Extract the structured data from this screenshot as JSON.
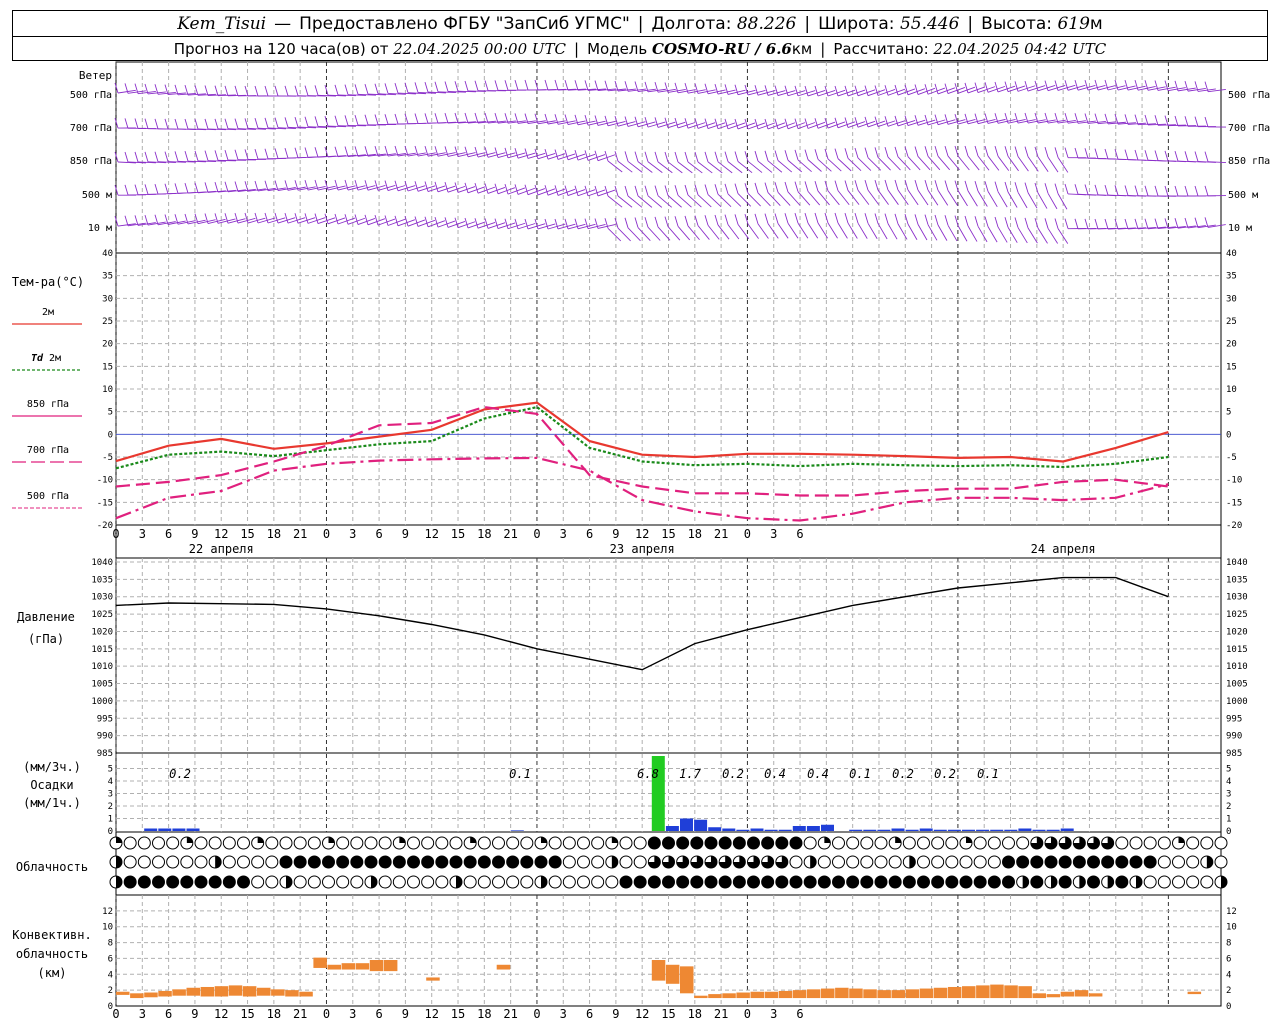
{
  "header": {
    "station": "Kem_Tisui",
    "provider": "Предоставлено ФГБУ \"ЗапСиб УГМС\"",
    "lon_label": "Долгота:",
    "lon": "88.226",
    "lat_label": "Широта:",
    "lat": "55.446",
    "alt_label": "Высота:",
    "alt": "619",
    "alt_unit": "м",
    "forecast_prefix": "Прогноз на 120 часа(ов) от",
    "forecast_start": "22.04.2025 00:00 UTC",
    "model_label": "Модель",
    "model": "COSMO-RU / 6.6",
    "model_unit": "км",
    "calc_label": "Рассчитано:",
    "calc_time": "22.04.2025 04:42 UTC"
  },
  "wind_panel": {
    "title": "Ветер",
    "levels": [
      "500 гПа",
      "700 гПа",
      "850 гПа",
      "500 м",
      "10  м"
    ],
    "color": "#8b2fc9"
  },
  "time_axis": {
    "hour_labels": [
      "0",
      "3",
      "6",
      "9",
      "12",
      "15",
      "18",
      "21",
      "0",
      "3",
      "6",
      "9",
      "12",
      "15",
      "18",
      "21",
      "0",
      "3",
      "6",
      "9",
      "12",
      "15",
      "18",
      "21",
      "0",
      "3",
      "6"
    ],
    "day_labels": [
      "22 апреля",
      "23 апреля",
      "24 апреля"
    ]
  },
  "legend": {
    "temp_title": "Тем-ра(°C)",
    "t2m": "2м",
    "td_prefix": "Td",
    "td": "2м",
    "t850": "850 гПа",
    "t700": "700 гПа",
    "t500": "500 гПа"
  },
  "pressure_panel": {
    "title": "Давление",
    "unit": "(гПа)"
  },
  "precip_panel": {
    "unit3h": "(мм/3ч.)",
    "title": "Осадки",
    "unit1h": "(мм/1ч.)",
    "totals": [
      {
        "h": 15,
        "label": "0.2"
      },
      {
        "h": 9,
        "label": "0.1"
      },
      {
        "h": 30,
        "label": "6.8"
      },
      {
        "h": 33,
        "label": "1.7"
      },
      {
        "h": 36,
        "label": "0.2"
      },
      {
        "h": 39,
        "label": "0.4"
      },
      {
        "h": 42,
        "label": "0.4"
      },
      {
        "h": 45,
        "label": "0.1"
      },
      {
        "h": 48,
        "label": "0.2"
      },
      {
        "h": 51,
        "label": "0.2"
      },
      {
        "h": 54,
        "label": "0.1"
      }
    ]
  },
  "cloud_panel": {
    "title": "Облачность"
  },
  "conv_panel": {
    "title1": "Конвективн.",
    "title2": "облачность",
    "unit": "(км)"
  },
  "chart_data": [
    {
      "type": "line",
      "name": "temperature",
      "x_hours": [
        0,
        6,
        12,
        18,
        24,
        30,
        36,
        42,
        48,
        54,
        60,
        66,
        72,
        78,
        84,
        90,
        96,
        102,
        108,
        114,
        120
      ],
      "ylim": [
        -20,
        40
      ],
      "series": [
        {
          "name": "2м",
          "color": "#e8382f",
          "values": [
            -5.9,
            -2.5,
            -1.0,
            -3.2,
            -2.0,
            -0.5,
            1.0,
            5.5,
            7.0,
            -1.5,
            -4.5,
            -5.0,
            -4.3,
            -4.3,
            -4.5,
            -4.8,
            -5.2,
            -5.0,
            -6.0,
            -3.0,
            0.5
          ]
        },
        {
          "name": "Td 2м",
          "color": "#1a8a1a",
          "values": [
            -7.5,
            -4.5,
            -3.8,
            -4.8,
            -3.5,
            -2.2,
            -1.5,
            3.5,
            6.0,
            -3.0,
            -6.0,
            -6.8,
            -6.5,
            -7.0,
            -6.5,
            -6.8,
            -7.0,
            -6.8,
            -7.2,
            -6.5,
            -5.0
          ]
        },
        {
          "name": "850 гПа",
          "color": "#e0207e",
          "values": [
            -11.5,
            -10.5,
            -9.0,
            -6.0,
            -2.5,
            2.0,
            2.5,
            6.0,
            4.5,
            -9.0,
            -11.5,
            -13.0,
            -13.0,
            -13.5,
            -13.5,
            -12.5,
            -12.0,
            -12.0,
            -10.5,
            -10.0,
            -11.5
          ]
        },
        {
          "name": "700 гПа",
          "color": "#e0207e",
          "values": [
            -18.5,
            -14.0,
            -12.5,
            -8.0,
            -6.5,
            -5.8,
            -5.5,
            -5.3,
            -5.2,
            -8.0,
            -14.5,
            -17.0,
            -18.5,
            -19.0,
            -17.5,
            -15.0,
            -14.0,
            -14.0,
            -14.5,
            -14.0,
            -11.0
          ]
        },
        {
          "name": "500 гПа",
          "color": "#e0207e",
          "values": []
        }
      ]
    },
    {
      "type": "line",
      "name": "pressure",
      "x_hours": [
        0,
        6,
        12,
        18,
        24,
        30,
        36,
        42,
        48,
        54,
        60,
        66,
        72,
        78,
        84,
        90,
        96,
        102,
        108,
        114,
        120
      ],
      "ylim": [
        985,
        1040
      ],
      "series": [
        {
          "name": "Давление",
          "color": "#000000",
          "values": [
            1027.5,
            1028.2,
            1028.0,
            1027.8,
            1026.5,
            1024.5,
            1022.0,
            1019.0,
            1015.0,
            1012.0,
            1009.0,
            1016.5,
            1020.5,
            1024.0,
            1027.5,
            1030.0,
            1032.5,
            1034.0,
            1035.5,
            1035.5,
            1030.0
          ]
        }
      ]
    },
    {
      "type": "bar",
      "name": "precipitation_1h",
      "ylim": [
        0,
        6
      ],
      "bars": [
        {
          "h": 3,
          "v": 0.2
        },
        {
          "h": 4,
          "v": 0.2
        },
        {
          "h": 5,
          "v": 0.2
        },
        {
          "h": 6,
          "v": 0.2
        },
        {
          "h": 29,
          "v": 0.05
        },
        {
          "h": 39,
          "v": 6.0,
          "color": "#22cc22"
        },
        {
          "h": 40,
          "v": 0.4
        },
        {
          "h": 41,
          "v": 1.0
        },
        {
          "h": 42,
          "v": 0.9
        },
        {
          "h": 43,
          "v": 0.3
        },
        {
          "h": 44,
          "v": 0.2
        },
        {
          "h": 45,
          "v": 0.1
        },
        {
          "h": 46,
          "v": 0.2
        },
        {
          "h": 47,
          "v": 0.1
        },
        {
          "h": 48,
          "v": 0.1
        },
        {
          "h": 49,
          "v": 0.4
        },
        {
          "h": 50,
          "v": 0.4
        },
        {
          "h": 51,
          "v": 0.5
        },
        {
          "h": 53,
          "v": 0.1
        },
        {
          "h": 54,
          "v": 0.1
        },
        {
          "h": 55,
          "v": 0.1
        },
        {
          "h": 56,
          "v": 0.2
        },
        {
          "h": 57,
          "v": 0.1
        },
        {
          "h": 58,
          "v": 0.2
        },
        {
          "h": 59,
          "v": 0.1
        },
        {
          "h": 60,
          "v": 0.1
        },
        {
          "h": 61,
          "v": 0.1
        },
        {
          "h": 62,
          "v": 0.1
        },
        {
          "h": 63,
          "v": 0.1
        },
        {
          "h": 64,
          "v": 0.1
        },
        {
          "h": 65,
          "v": 0.2
        },
        {
          "h": 66,
          "v": 0.1
        },
        {
          "h": 67,
          "v": 0.1
        },
        {
          "h": 68,
          "v": 0.2
        }
      ],
      "color": "#1f3fd8"
    },
    {
      "type": "bar",
      "name": "convective_cloud",
      "ylim": [
        0,
        14
      ],
      "color": "#ee8833",
      "bars": [
        {
          "h": 0,
          "lo": 1.4,
          "hi": 1.8
        },
        {
          "h": 1,
          "lo": 1.0,
          "hi": 1.6
        },
        {
          "h": 2,
          "lo": 1.1,
          "hi": 1.7
        },
        {
          "h": 3,
          "lo": 1.2,
          "hi": 1.9
        },
        {
          "h": 4,
          "lo": 1.3,
          "hi": 2.1
        },
        {
          "h": 5,
          "lo": 1.3,
          "hi": 2.3
        },
        {
          "h": 6,
          "lo": 1.2,
          "hi": 2.4
        },
        {
          "h": 7,
          "lo": 1.2,
          "hi": 2.5
        },
        {
          "h": 8,
          "lo": 1.3,
          "hi": 2.6
        },
        {
          "h": 9,
          "lo": 1.2,
          "hi": 2.5
        },
        {
          "h": 10,
          "lo": 1.3,
          "hi": 2.3
        },
        {
          "h": 11,
          "lo": 1.3,
          "hi": 2.1
        },
        {
          "h": 12,
          "lo": 1.2,
          "hi": 2.0
        },
        {
          "h": 13,
          "lo": 1.2,
          "hi": 1.8
        },
        {
          "h": 14,
          "lo": 4.8,
          "hi": 6.1
        },
        {
          "h": 15,
          "lo": 4.6,
          "hi": 5.2
        },
        {
          "h": 16,
          "lo": 4.6,
          "hi": 5.4
        },
        {
          "h": 17,
          "lo": 4.6,
          "hi": 5.4
        },
        {
          "h": 18,
          "lo": 4.4,
          "hi": 5.8
        },
        {
          "h": 19,
          "lo": 4.4,
          "hi": 5.8
        },
        {
          "h": 22,
          "lo": 3.2,
          "hi": 3.6
        },
        {
          "h": 27,
          "lo": 4.6,
          "hi": 5.2
        },
        {
          "h": 38,
          "lo": 3.2,
          "hi": 5.8
        },
        {
          "h": 39,
          "lo": 2.8,
          "hi": 5.2
        },
        {
          "h": 40,
          "lo": 1.6,
          "hi": 5.0
        },
        {
          "h": 41,
          "lo": 1.0,
          "hi": 1.3
        },
        {
          "h": 42,
          "lo": 1.0,
          "hi": 1.5
        },
        {
          "h": 43,
          "lo": 1.0,
          "hi": 1.6
        },
        {
          "h": 44,
          "lo": 1.0,
          "hi": 1.7
        },
        {
          "h": 45,
          "lo": 1.0,
          "hi": 1.8
        },
        {
          "h": 46,
          "lo": 1.0,
          "hi": 1.8
        },
        {
          "h": 47,
          "lo": 1.0,
          "hi": 1.9
        },
        {
          "h": 48,
          "lo": 1.0,
          "hi": 2.0
        },
        {
          "h": 49,
          "lo": 1.0,
          "hi": 2.1
        },
        {
          "h": 50,
          "lo": 1.0,
          "hi": 2.2
        },
        {
          "h": 51,
          "lo": 1.0,
          "hi": 2.3
        },
        {
          "h": 52,
          "lo": 1.0,
          "hi": 2.2
        },
        {
          "h": 53,
          "lo": 1.0,
          "hi": 2.1
        },
        {
          "h": 54,
          "lo": 1.0,
          "hi": 2.0
        },
        {
          "h": 55,
          "lo": 1.0,
          "hi": 2.0
        },
        {
          "h": 56,
          "lo": 1.0,
          "hi": 2.1
        },
        {
          "h": 57,
          "lo": 1.0,
          "hi": 2.2
        },
        {
          "h": 58,
          "lo": 1.0,
          "hi": 2.3
        },
        {
          "h": 59,
          "lo": 1.0,
          "hi": 2.4
        },
        {
          "h": 60,
          "lo": 1.0,
          "hi": 2.5
        },
        {
          "h": 61,
          "lo": 1.0,
          "hi": 2.6
        },
        {
          "h": 62,
          "lo": 1.0,
          "hi": 2.7
        },
        {
          "h": 63,
          "lo": 1.0,
          "hi": 2.6
        },
        {
          "h": 64,
          "lo": 1.0,
          "hi": 2.5
        },
        {
          "h": 65,
          "lo": 1.0,
          "hi": 1.6
        },
        {
          "h": 66,
          "lo": 1.1,
          "hi": 1.5
        },
        {
          "h": 67,
          "lo": 1.2,
          "hi": 1.8
        },
        {
          "h": 68,
          "lo": 1.2,
          "hi": 2.0
        },
        {
          "h": 69,
          "lo": 1.2,
          "hi": 1.6
        },
        {
          "h": 76,
          "lo": 1.5,
          "hi": 1.8
        }
      ]
    }
  ]
}
